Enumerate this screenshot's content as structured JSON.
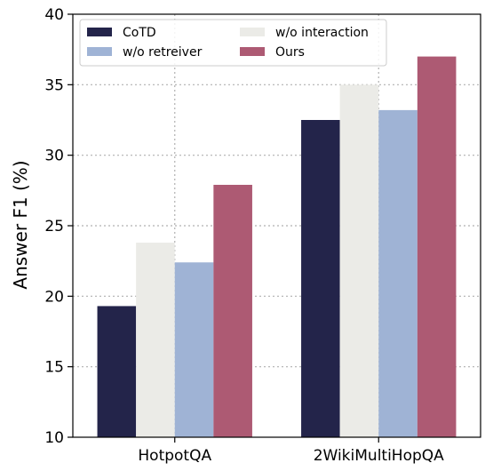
{
  "chart_data": {
    "type": "bar",
    "title": "",
    "xlabel": "",
    "ylabel": "Answer F1 (%)",
    "ylim": [
      10,
      40
    ],
    "yticks": [
      "10",
      "15",
      "20",
      "25",
      "30",
      "35",
      "40"
    ],
    "grid": true,
    "legend_position": "top-left",
    "categories": [
      "HotpotQA",
      "2WikiMultiHopQA"
    ],
    "series": [
      {
        "name": "CoTD",
        "values": [
          19.3,
          32.5
        ],
        "color": "#23244a"
      },
      {
        "name": "w/o interaction",
        "values": [
          23.8,
          35.0
        ],
        "color": "#ebebe7"
      },
      {
        "name": "w/o retreiver",
        "values": [
          22.4,
          33.2
        ],
        "color": "#9fb3d5"
      },
      {
        "name": "Ours",
        "values": [
          27.9,
          37.0
        ],
        "color": "#ad5a73"
      }
    ],
    "legend_order": [
      "CoTD",
      "w/o retreiver",
      "w/o interaction",
      "Ours"
    ]
  }
}
